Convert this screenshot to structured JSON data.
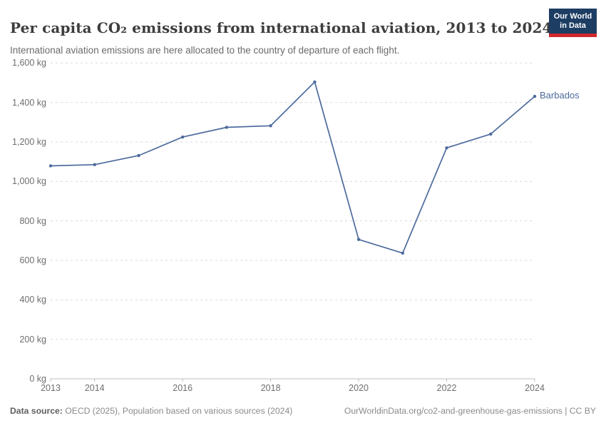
{
  "header": {
    "title": "Per capita CO₂ emissions from international aviation, 2013 to 2024",
    "subtitle": "International aviation emissions are here allocated to the country of departure of each flight.",
    "logo": {
      "line1": "Our World",
      "line2": "in Data"
    }
  },
  "chart_data": {
    "type": "line",
    "title": "Per capita CO₂ emissions from international aviation, 2013 to 2024",
    "subtitle": "International aviation emissions are here allocated to the country of departure of each flight.",
    "xlim": [
      2013,
      2024
    ],
    "ylim": [
      0,
      1600
    ],
    "grid": "horizontal-dashed",
    "legend": "end-of-line-label",
    "series": [
      {
        "name": "Barbados",
        "color": "#4c6a9c",
        "x": [
          2013,
          2014,
          2015,
          2016,
          2017,
          2018,
          2019,
          2020,
          2021,
          2022,
          2023,
          2024
        ],
        "values": [
          1079,
          1085,
          1131,
          1225,
          1274,
          1282,
          1504,
          706,
          637,
          1170,
          1240,
          1431
        ]
      }
    ],
    "x_ticks": [
      {
        "v": 2013,
        "label": "2013"
      },
      {
        "v": 2014,
        "label": "2014"
      },
      {
        "v": 2016,
        "label": "2016"
      },
      {
        "v": 2018,
        "label": "2018"
      },
      {
        "v": 2020,
        "label": "2020"
      },
      {
        "v": 2022,
        "label": "2022"
      },
      {
        "v": 2024,
        "label": "2024"
      }
    ],
    "y_ticks": [
      {
        "v": 0,
        "label": "0 kg"
      },
      {
        "v": 200,
        "label": "200 kg"
      },
      {
        "v": 400,
        "label": "400 kg"
      },
      {
        "v": 600,
        "label": "600 kg"
      },
      {
        "v": 800,
        "label": "800 kg"
      },
      {
        "v": 1000,
        "label": "1,000 kg"
      },
      {
        "v": 1200,
        "label": "1,200 kg"
      },
      {
        "v": 1400,
        "label": "1,400 kg"
      },
      {
        "v": 1600,
        "label": "1,600 kg"
      }
    ]
  },
  "colors": {
    "line": "#4c6a9c",
    "grid": "#dadada",
    "axis": "#bcbcbc",
    "tick_label": "#6e6e6e",
    "logo_bg": "#1d3d63",
    "logo_accent": "#d0262c"
  },
  "footer": {
    "source_label": "Data source:",
    "source_text": " OECD (2025), Population based on various sources (2024)",
    "credit": "OurWorldinData.org/co2-and-greenhouse-gas-emissions | CC BY"
  }
}
